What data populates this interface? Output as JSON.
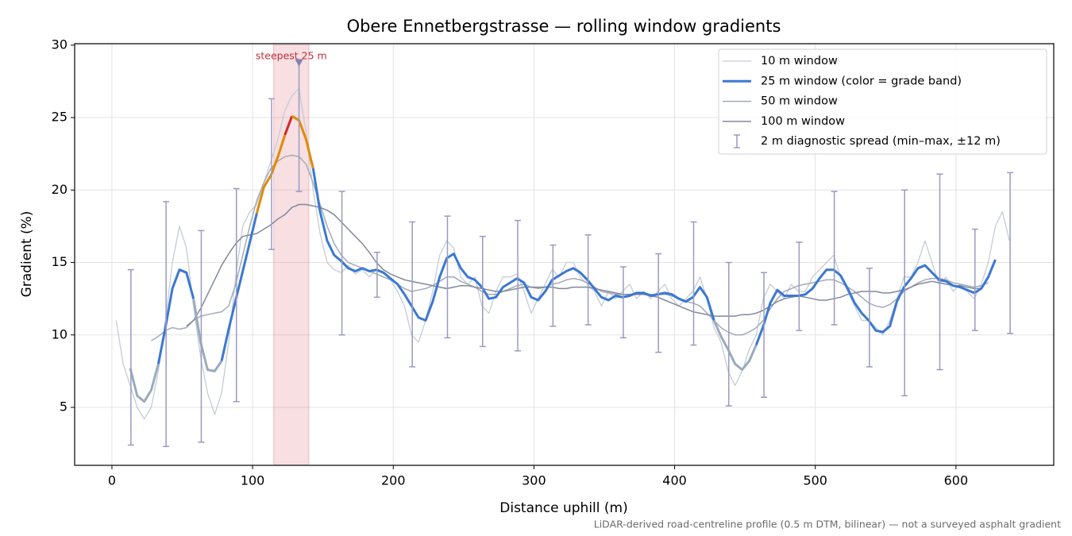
{
  "chart_data": {
    "type": "line",
    "title": "Obere Ennetbergstrasse — rolling window gradients",
    "x_label": "Distance uphill (m)",
    "y_label": "Gradient (%)",
    "footnote": "LiDAR-derived road-centreline profile (0.5 m DTM, bilinear) — not a surveyed asphalt gradient",
    "xlim": [
      -26.5,
      669.5
    ],
    "ylim": [
      1.0,
      30.1
    ],
    "xticks": [
      0,
      100,
      200,
      300,
      400,
      500,
      600
    ],
    "yticks": [
      5,
      10,
      15,
      20,
      25,
      30
    ],
    "grid": true,
    "legend": "upper right",
    "x": [
      3,
      8,
      13,
      18,
      23,
      28,
      33,
      38,
      43,
      48,
      53,
      58,
      63,
      68,
      73,
      78,
      83,
      88,
      93,
      98,
      103,
      108,
      113,
      118,
      123,
      128,
      133,
      138,
      143,
      148,
      153,
      158,
      163,
      168,
      173,
      178,
      183,
      188,
      193,
      198,
      203,
      208,
      213,
      218,
      223,
      228,
      233,
      238,
      243,
      248,
      253,
      258,
      263,
      268,
      273,
      278,
      283,
      288,
      293,
      298,
      303,
      308,
      313,
      318,
      323,
      328,
      333,
      338,
      343,
      348,
      353,
      358,
      363,
      368,
      373,
      378,
      383,
      388,
      393,
      398,
      403,
      408,
      413,
      418,
      423,
      428,
      433,
      438,
      443,
      448,
      453,
      458,
      463,
      468,
      473,
      478,
      483,
      488,
      493,
      498,
      503,
      508,
      513,
      518,
      523,
      528,
      533,
      538,
      543,
      548,
      553,
      558,
      563,
      568,
      573,
      578,
      583,
      588,
      593,
      598,
      603,
      608,
      613,
      618,
      623,
      628,
      633,
      638
    ],
    "series": [
      {
        "name": "10 m window",
        "color": "#c6ccd5",
        "width": 1.3,
        "values": [
          11.0,
          8.0,
          6.5,
          5.0,
          4.2,
          5.0,
          7.5,
          11.0,
          15.0,
          17.5,
          16.0,
          12.0,
          8.5,
          6.0,
          4.5,
          6.0,
          9.5,
          14.0,
          17.5,
          18.5,
          19.0,
          20.5,
          22.0,
          23.5,
          25.5,
          26.5,
          27.0,
          24.0,
          20.0,
          17.0,
          15.0,
          14.5,
          14.3,
          14.8,
          14.2,
          14.5,
          14.0,
          14.5,
          14.3,
          13.8,
          13.0,
          12.0,
          10.0,
          9.5,
          11.0,
          13.0,
          15.5,
          16.5,
          16.0,
          14.0,
          13.5,
          14.0,
          12.0,
          11.5,
          13.0,
          14.0,
          14.0,
          14.2,
          13.0,
          11.5,
          12.5,
          13.5,
          14.5,
          14.0,
          15.0,
          15.0,
          14.0,
          13.5,
          13.0,
          12.0,
          13.0,
          12.5,
          13.0,
          13.5,
          12.5,
          13.0,
          12.5,
          13.0,
          13.5,
          12.5,
          12.0,
          12.5,
          13.0,
          14.0,
          12.5,
          10.5,
          9.5,
          7.5,
          6.5,
          7.5,
          9.0,
          10.0,
          12.5,
          13.5,
          13.0,
          12.5,
          13.5,
          13.0,
          13.0,
          14.0,
          14.5,
          15.0,
          15.5,
          14.0,
          13.0,
          12.0,
          11.0,
          11.0,
          10.5,
          10.0,
          11.0,
          12.5,
          14.0,
          14.0,
          15.0,
          16.5,
          15.0,
          13.5,
          14.0,
          13.0,
          13.5,
          13.0,
          12.5,
          13.5,
          15.0,
          17.5,
          18.5,
          16.5
        ]
      },
      {
        "name": "25 m window (color = grade band)",
        "color": "#3a78d4",
        "width": 3,
        "band_edges": [
          10,
          20,
          25
        ],
        "band_colors": [
          "#9aabbd",
          "#3a78d4",
          "#e08a00",
          "#d62728"
        ],
        "values": [
          null,
          null,
          7.7,
          5.8,
          5.4,
          6.2,
          8.0,
          10.5,
          13.2,
          14.5,
          14.3,
          12.5,
          9.5,
          7.6,
          7.5,
          8.2,
          10.4,
          12.4,
          14.4,
          16.4,
          18.4,
          20.2,
          21.0,
          22.3,
          23.8,
          25.1,
          24.8,
          23.5,
          21.5,
          18.5,
          16.5,
          15.5,
          15.1,
          14.6,
          14.4,
          14.6,
          14.4,
          14.5,
          14.3,
          13.9,
          13.5,
          12.8,
          12.0,
          11.2,
          11.0,
          12.3,
          14.0,
          15.3,
          15.6,
          14.6,
          14.0,
          13.8,
          13.3,
          12.5,
          12.6,
          13.3,
          13.6,
          13.9,
          13.6,
          12.6,
          12.4,
          13.0,
          13.8,
          14.1,
          14.4,
          14.6,
          14.3,
          13.8,
          13.2,
          12.6,
          12.4,
          12.7,
          12.6,
          12.7,
          12.9,
          12.9,
          12.7,
          12.8,
          12.9,
          12.8,
          12.5,
          12.3,
          12.6,
          13.3,
          12.6,
          11.0,
          9.9,
          9.0,
          8.0,
          7.6,
          8.2,
          9.3,
          10.6,
          12.2,
          13.1,
          12.7,
          12.7,
          12.7,
          12.8,
          13.2,
          13.9,
          14.5,
          14.5,
          14.1,
          13.2,
          12.2,
          11.5,
          11.0,
          10.3,
          10.2,
          10.6,
          12.3,
          13.3,
          13.9,
          14.6,
          14.8,
          14.3,
          13.8,
          13.7,
          13.4,
          13.3,
          13.1,
          12.9,
          13.2,
          14.0,
          15.2,
          null,
          null
        ]
      },
      {
        "name": "50 m window",
        "color": "#a2abb8",
        "width": 1.5,
        "values": [
          null,
          null,
          null,
          null,
          null,
          9.6,
          9.9,
          10.3,
          10.5,
          10.4,
          10.5,
          11.0,
          11.3,
          11.4,
          11.5,
          11.6,
          12.0,
          13.5,
          15.5,
          17.5,
          19.3,
          20.5,
          21.5,
          22.0,
          22.3,
          22.4,
          22.3,
          21.8,
          20.5,
          19.0,
          17.5,
          16.3,
          15.5,
          15.0,
          14.8,
          14.6,
          14.4,
          14.2,
          14.0,
          13.8,
          13.5,
          13.2,
          13.0,
          13.1,
          13.2,
          13.4,
          13.7,
          14.0,
          14.0,
          13.7,
          13.5,
          13.3,
          13.0,
          12.8,
          12.8,
          13.0,
          13.2,
          13.4,
          13.5,
          13.3,
          13.2,
          13.3,
          13.5,
          13.6,
          13.8,
          13.9,
          13.8,
          13.6,
          13.3,
          13.0,
          12.9,
          12.8,
          12.8,
          12.8,
          12.9,
          12.9,
          12.8,
          12.8,
          12.8,
          12.7,
          12.5,
          12.3,
          12.2,
          12.0,
          11.5,
          11.0,
          10.5,
          10.2,
          10.0,
          10.0,
          10.2,
          10.5,
          11.0,
          11.8,
          12.5,
          13.0,
          13.2,
          13.4,
          13.5,
          13.6,
          13.7,
          13.8,
          13.8,
          13.6,
          13.3,
          13.0,
          12.6,
          12.2,
          12.0,
          11.9,
          12.1,
          12.5,
          13.0,
          13.3,
          13.6,
          13.8,
          13.9,
          13.9,
          13.8,
          13.6,
          13.5,
          13.4,
          13.3,
          13.4,
          13.6,
          null,
          null,
          null
        ]
      },
      {
        "name": "100 m window",
        "color": "#82889a",
        "width": 1.5,
        "values": [
          null,
          null,
          null,
          null,
          null,
          null,
          null,
          null,
          null,
          null,
          10.6,
          11.0,
          11.8,
          12.8,
          13.8,
          14.8,
          15.6,
          16.3,
          16.8,
          16.9,
          17.0,
          17.3,
          17.6,
          18.0,
          18.3,
          18.8,
          19.0,
          19.0,
          18.9,
          18.8,
          18.6,
          18.3,
          17.8,
          17.3,
          16.8,
          16.3,
          15.7,
          15.0,
          14.5,
          14.2,
          14.0,
          13.8,
          13.7,
          13.6,
          13.5,
          13.4,
          13.3,
          13.2,
          13.3,
          13.4,
          13.4,
          13.3,
          13.2,
          13.1,
          13.0,
          13.0,
          13.1,
          13.2,
          13.3,
          13.3,
          13.3,
          13.3,
          13.3,
          13.2,
          13.2,
          13.3,
          13.3,
          13.3,
          13.2,
          13.1,
          13.0,
          12.9,
          12.8,
          12.8,
          12.8,
          12.8,
          12.7,
          12.6,
          12.4,
          12.2,
          12.0,
          11.8,
          11.6,
          11.5,
          11.4,
          11.3,
          11.3,
          11.3,
          11.3,
          11.4,
          11.4,
          11.5,
          11.7,
          12.0,
          12.3,
          12.5,
          12.6,
          12.7,
          12.6,
          12.5,
          12.4,
          12.4,
          12.5,
          12.6,
          12.8,
          12.9,
          13.0,
          13.0,
          13.0,
          12.9,
          12.9,
          13.0,
          13.1,
          13.3,
          13.5,
          13.6,
          13.7,
          13.6,
          13.5,
          13.4,
          13.4,
          13.3,
          13.2,
          13.2,
          null,
          null,
          null,
          null
        ]
      }
    ],
    "spread": {
      "name": "2 m diagnostic spread (min–max, ±12 m)",
      "color": "#9a9ac2",
      "x": [
        13.5,
        38.5,
        63.5,
        88.5,
        113.5,
        133,
        163.5,
        188.5,
        213.5,
        238.5,
        263.5,
        288.5,
        313.5,
        338.5,
        363.5,
        388.5,
        413.5,
        438.5,
        463.5,
        488.5,
        513.5,
        538.5,
        563.5,
        588.5,
        613.5,
        638.5
      ],
      "low": [
        2.4,
        2.3,
        2.6,
        5.4,
        15.9,
        19.9,
        10.0,
        12.6,
        7.8,
        9.8,
        9.2,
        8.9,
        10.6,
        10.7,
        9.8,
        8.8,
        9.3,
        5.1,
        5.7,
        10.3,
        10.7,
        7.8,
        5.8,
        7.6,
        10.3,
        10.1
      ],
      "high": [
        14.5,
        19.2,
        17.2,
        20.1,
        26.3,
        29.0,
        19.9,
        15.7,
        17.8,
        18.2,
        16.8,
        17.9,
        16.2,
        16.9,
        14.7,
        15.6,
        17.8,
        15.0,
        14.3,
        16.4,
        19.9,
        14.6,
        20.0,
        21.1,
        17.3,
        21.2
      ]
    },
    "steepest": {
      "label": "steepest 25 m",
      "span": [
        115,
        140
      ],
      "color": "#d9606f",
      "marker_x": 133,
      "marker_y": 28.8,
      "marker_color": "#8282b0"
    }
  }
}
